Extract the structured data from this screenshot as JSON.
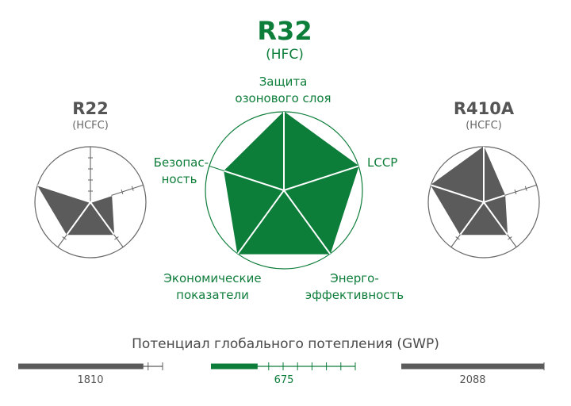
{
  "colors": {
    "green": "#0d7d3a",
    "gray": "#5b5b5b",
    "light_gray": "#8a8a8a",
    "text_dark": "#3a3a3a"
  },
  "chart_data": [
    {
      "type": "radar",
      "title": "R32",
      "subtitle": "(HFC)",
      "axes": [
        "Защита озонового слоя",
        "LCCP",
        "Энерго-эффективность",
        "Экономические показатели",
        "Безопас-ность"
      ],
      "axis_labels": [
        [
          "Защита",
          "озонового слоя"
        ],
        [
          "LCCP"
        ],
        [
          "Энерго-",
          "эффективность"
        ],
        [
          "Экономические",
          "показатели"
        ],
        [
          "Безопас-",
          "ность"
        ]
      ],
      "values": [
        1.0,
        1.0,
        1.0,
        1.0,
        0.8
      ],
      "max": 1.0
    },
    {
      "type": "radar",
      "title": "R22",
      "subtitle": "(HCFC)",
      "axes": [
        "Защита озонового слоя",
        "LCCP",
        "Энерго-эффективность",
        "Экономические показатели",
        "Безопас-ность"
      ],
      "values": [
        0.0,
        0.4,
        0.72,
        0.72,
        1.0
      ],
      "max": 1.0
    },
    {
      "type": "radar",
      "title": "R410A",
      "subtitle": "(HCFC)",
      "axes": [
        "Защита озонового слоя",
        "LCCP",
        "Энерго-эффективность",
        "Экономические показатели",
        "Безопас-ность"
      ],
      "values": [
        1.0,
        0.4,
        0.72,
        0.72,
        1.0
      ],
      "max": 1.0
    },
    {
      "type": "bar",
      "title": "Потенциал глобального потепления (GWP)",
      "categories": [
        "R22",
        "R32",
        "R410A"
      ],
      "values": [
        1810,
        675,
        2088
      ],
      "value_labels": [
        "1810",
        "675",
        "2088"
      ],
      "max": 2088
    }
  ]
}
